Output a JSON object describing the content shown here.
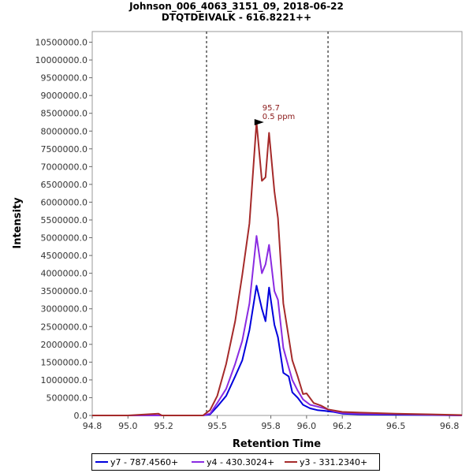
{
  "chart_data": {
    "type": "line",
    "title_line1": "Johnson_006_4063_3151_09, 2018-06-22",
    "title_line2": "DTQTDEIVALK - 616.8221++",
    "xlabel": "Retention Time",
    "ylabel": "Intensity",
    "xlim": [
      94.8,
      96.87
    ],
    "ylim": [
      0,
      10800000
    ],
    "xticks": [
      94.8,
      95.0,
      95.2,
      95.5,
      95.8,
      96.0,
      96.2,
      96.5,
      96.8
    ],
    "xtick_labels": [
      "94.8",
      "95.0",
      "95.2",
      "95.5",
      "95.8",
      "96.0",
      "96.2",
      "96.5",
      "96.8"
    ],
    "yticks": [
      0,
      500000,
      1000000,
      1500000,
      2000000,
      2500000,
      3000000,
      3500000,
      4000000,
      4500000,
      5000000,
      5500000,
      6000000,
      6500000,
      7000000,
      7500000,
      8000000,
      8500000,
      9000000,
      9500000,
      10000000,
      10500000
    ],
    "ytick_labels": [
      "0.0",
      "500000.0",
      "1000000.0",
      "1500000.0",
      "2000000.0",
      "2500000.0",
      "3000000.0",
      "3500000.0",
      "4000000.0",
      "4500000.0",
      "5000000.0",
      "5500000.0",
      "6000000.0",
      "6500000.0",
      "7000000.0",
      "7500000.0",
      "8000000.0",
      "8500000.0",
      "9000000.0",
      "9500000.0",
      "10000000.0",
      "10500000.0"
    ],
    "boundaries": [
      95.44,
      96.12
    ],
    "annotation": {
      "line1": "95.7",
      "line2": "0.5 ppm",
      "x": 95.77,
      "y": 8250000,
      "color": "#8b1a1a"
    },
    "legend_position": "bottom",
    "series": [
      {
        "name": "y7 - 787.4560+",
        "color": "#0000dd",
        "x": [
          94.8,
          95.0,
          95.2,
          95.42,
          95.46,
          95.5,
          95.55,
          95.6,
          95.64,
          95.68,
          95.72,
          95.75,
          95.77,
          95.79,
          95.82,
          95.84,
          95.87,
          95.9,
          95.92,
          95.95,
          95.98,
          96.02,
          96.06,
          96.1,
          96.15,
          96.2,
          96.3,
          96.5,
          96.7,
          96.87
        ],
        "y": [
          0,
          0,
          0,
          0,
          30000,
          250000,
          550000,
          1100000,
          1550000,
          2400000,
          3650000,
          3000000,
          2650000,
          3600000,
          2550000,
          2200000,
          1200000,
          1100000,
          650000,
          500000,
          300000,
          200000,
          150000,
          130000,
          100000,
          50000,
          30000,
          20000,
          10000,
          0
        ]
      },
      {
        "name": "y4 - 430.3024+",
        "color": "#8a2be2",
        "x": [
          94.8,
          95.0,
          95.2,
          95.42,
          95.46,
          95.5,
          95.55,
          95.6,
          95.64,
          95.68,
          95.72,
          95.75,
          95.77,
          95.79,
          95.82,
          95.84,
          95.87,
          95.9,
          95.92,
          95.95,
          95.98,
          96.02,
          96.06,
          96.1,
          96.15,
          96.2,
          96.3,
          96.5,
          96.7,
          96.87
        ],
        "y": [
          0,
          0,
          0,
          0,
          50000,
          350000,
          750000,
          1450000,
          2100000,
          3150000,
          5050000,
          4000000,
          4250000,
          4800000,
          3500000,
          3250000,
          1900000,
          1350000,
          1000000,
          700000,
          450000,
          300000,
          250000,
          200000,
          120000,
          70000,
          50000,
          40000,
          20000,
          0
        ]
      },
      {
        "name": "y3 - 331.2340+",
        "color": "#a52a2a",
        "x": [
          94.8,
          95.0,
          95.17,
          95.19,
          95.3,
          95.42,
          95.46,
          95.5,
          95.55,
          95.6,
          95.64,
          95.68,
          95.72,
          95.75,
          95.77,
          95.79,
          95.82,
          95.84,
          95.87,
          95.9,
          95.92,
          95.95,
          95.98,
          96.0,
          96.04,
          96.08,
          96.12,
          96.2,
          96.3,
          96.5,
          96.7,
          96.87
        ],
        "y": [
          0,
          0,
          50000,
          0,
          0,
          0,
          150000,
          550000,
          1450000,
          2650000,
          3950000,
          5400000,
          8250000,
          6600000,
          6700000,
          7950000,
          6300000,
          5550000,
          3150000,
          2200000,
          1550000,
          1100000,
          600000,
          620000,
          350000,
          280000,
          170000,
          100000,
          80000,
          50000,
          30000,
          10000
        ]
      }
    ]
  }
}
